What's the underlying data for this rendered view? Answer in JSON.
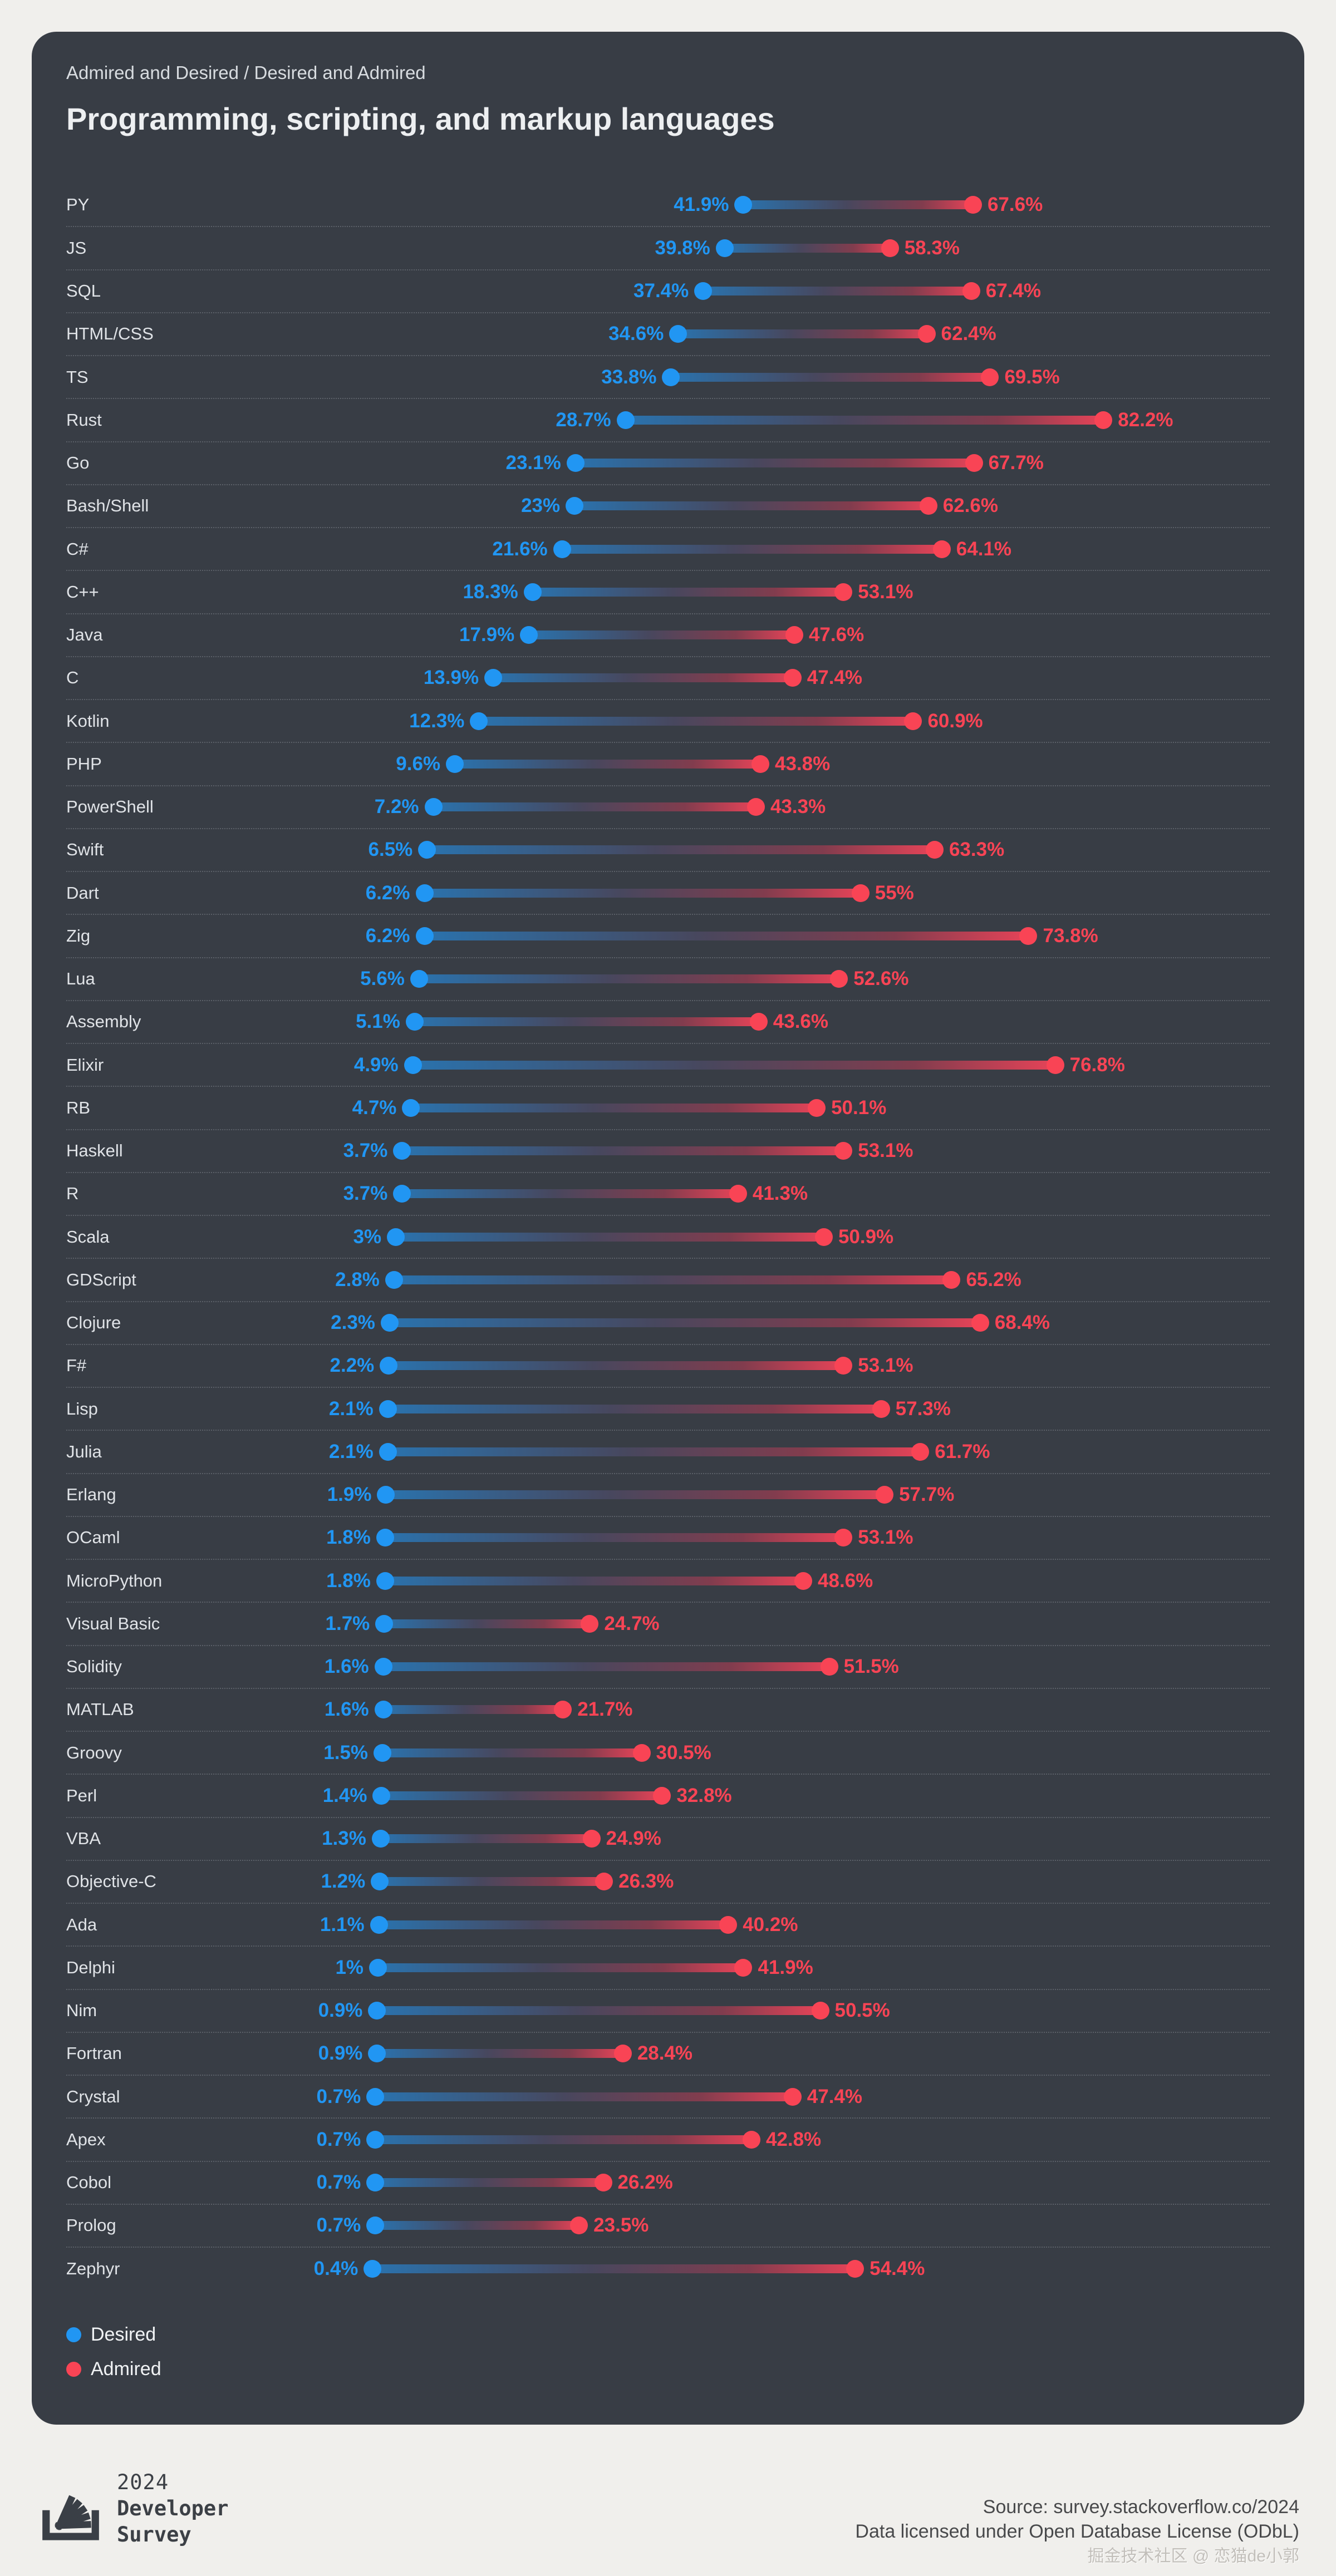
{
  "card": {
    "subtitle": "Admired and Desired / Desired and Admired",
    "title": "Programming, scripting, and markup languages"
  },
  "legend": {
    "desired": "Desired",
    "admired": "Admired"
  },
  "colors": {
    "desired": "#2196f3",
    "admired": "#f94455",
    "card_bg": "#383d45",
    "page_bg": "#f0efec"
  },
  "chart_data": {
    "type": "dumbbell",
    "title": "Programming, scripting, and markup languages",
    "subtitle": "Admired and Desired / Desired and Admired",
    "unit": "%",
    "axis": {
      "min": 0,
      "max": 100,
      "grid": false
    },
    "legend_position": "bottom-left",
    "categories": [
      "PY",
      "JS",
      "SQL",
      "HTML/CSS",
      "TS",
      "Rust",
      "Go",
      "Bash/Shell",
      "C#",
      "C++",
      "Java",
      "C",
      "Kotlin",
      "PHP",
      "PowerShell",
      "Swift",
      "Dart",
      "Zig",
      "Lua",
      "Assembly",
      "Elixir",
      "RB",
      "Haskell",
      "R",
      "Scala",
      "GDScript",
      "Clojure",
      "F#",
      "Lisp",
      "Julia",
      "Erlang",
      "OCaml",
      "MicroPython",
      "Visual Basic",
      "Solidity",
      "MATLAB",
      "Groovy",
      "Perl",
      "VBA",
      "Objective-C",
      "Ada",
      "Delphi",
      "Nim",
      "Fortran",
      "Crystal",
      "Apex",
      "Cobol",
      "Prolog",
      "Zephyr"
    ],
    "series": [
      {
        "name": "Desired",
        "color": "#2196f3",
        "values": [
          41.9,
          39.8,
          37.4,
          34.6,
          33.8,
          28.7,
          23.1,
          23,
          21.6,
          18.3,
          17.9,
          13.9,
          12.3,
          9.6,
          7.2,
          6.5,
          6.2,
          6.2,
          5.6,
          5.1,
          4.9,
          4.7,
          3.7,
          3.7,
          3,
          2.8,
          2.3,
          2.2,
          2.1,
          2.1,
          1.9,
          1.8,
          1.8,
          1.7,
          1.6,
          1.6,
          1.5,
          1.4,
          1.3,
          1.2,
          1.1,
          1,
          0.9,
          0.9,
          0.7,
          0.7,
          0.7,
          0.7,
          0.4
        ]
      },
      {
        "name": "Admired",
        "color": "#f94455",
        "values": [
          67.6,
          58.3,
          67.4,
          62.4,
          69.5,
          82.2,
          67.7,
          62.6,
          64.1,
          53.1,
          47.6,
          47.4,
          60.9,
          43.8,
          43.3,
          63.3,
          55,
          73.8,
          52.6,
          43.6,
          76.8,
          50.1,
          53.1,
          41.3,
          50.9,
          65.2,
          68.4,
          53.1,
          57.3,
          61.7,
          57.7,
          53.1,
          48.6,
          24.7,
          51.5,
          21.7,
          30.5,
          32.8,
          24.9,
          26.3,
          40.2,
          41.9,
          50.5,
          28.4,
          47.4,
          42.8,
          26.2,
          23.5,
          54.4
        ]
      }
    ]
  },
  "footer": {
    "brand_year": "2024",
    "brand_line1": "Developer",
    "brand_line2": "Survey",
    "source": "Source: survey.stackoverflow.co/2024",
    "license": "Data licensed under Open Database License (ODbL)",
    "watermark": "掘金技术社区 @ 恋猫de小郭"
  }
}
